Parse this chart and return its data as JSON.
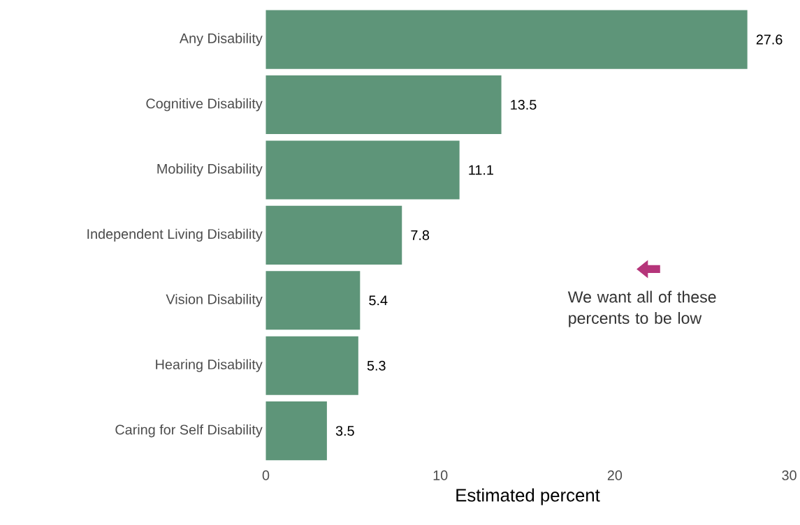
{
  "chart_data": {
    "type": "bar",
    "orientation": "horizontal",
    "xlabel": "Estimated percent",
    "categories": [
      "Any Disability",
      "Cognitive Disability",
      "Mobility Disability",
      "Independent Living Disability",
      "Vision Disability",
      "Hearing Disability",
      "Caring for Self Disability"
    ],
    "values": [
      27.6,
      13.5,
      11.1,
      7.8,
      5.4,
      5.3,
      3.5
    ],
    "color": "#5e9579",
    "xlim": [
      0,
      30
    ],
    "xticks": [
      0,
      10,
      20,
      30
    ],
    "data_labels": true,
    "annotations": [
      "We want all of these percents to be low"
    ]
  }
}
